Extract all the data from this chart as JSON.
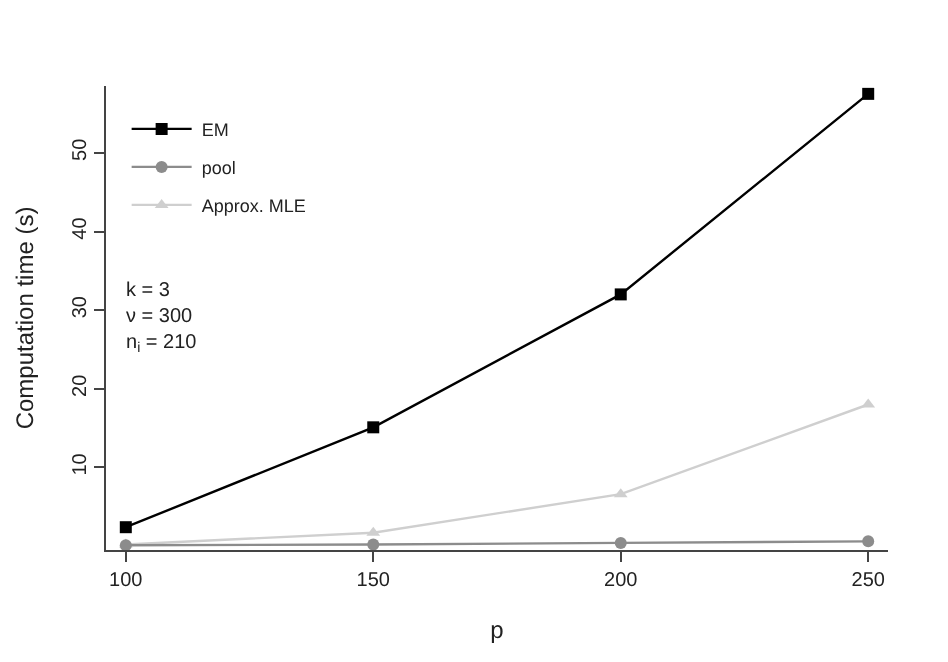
{
  "chart_data": {
    "type": "line",
    "xlabel": "p",
    "ylabel": "Computation time (s)",
    "x": [
      100,
      150,
      200,
      250
    ],
    "series": [
      {
        "name": "EM",
        "color": "#000000",
        "marker": "square",
        "values": [
          2.4,
          15.1,
          32.0,
          57.5
        ]
      },
      {
        "name": "pool",
        "color": "#8c8c8c",
        "marker": "circle",
        "values": [
          0.1,
          0.2,
          0.4,
          0.6
        ]
      },
      {
        "name": "Approx. MLE",
        "color": "#cfcfcf",
        "marker": "triangle",
        "values": [
          0.2,
          1.7,
          6.6,
          18.0
        ]
      }
    ],
    "xlim": [
      96,
      254
    ],
    "ylim": [
      -0.5,
      58.5
    ],
    "xticks": [
      100,
      150,
      200,
      250
    ],
    "yticks": [
      10,
      20,
      30,
      40,
      50
    ],
    "legend": "top left",
    "line_style": "solid",
    "annotations": [
      "k = 3\nν = 300\nn$_{i}$ = 210"
    ]
  }
}
